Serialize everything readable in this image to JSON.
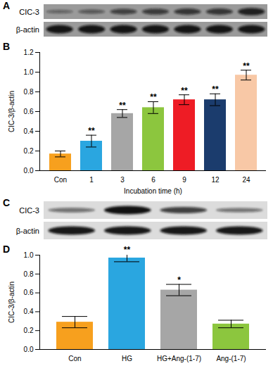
{
  "chart_data": [
    {
      "type": "bar",
      "panel_label": "B",
      "blot": {
        "panel_label": "A",
        "rows": [
          "CIC-3",
          "β-actin"
        ]
      },
      "categories": [
        "Con",
        "1",
        "3",
        "6",
        "9",
        "12",
        "24"
      ],
      "values": [
        0.17,
        0.3,
        0.58,
        0.64,
        0.72,
        0.72,
        0.97
      ],
      "errors": [
        0.03,
        0.06,
        0.04,
        0.06,
        0.05,
        0.06,
        0.05
      ],
      "annotations": [
        null,
        "**",
        "**",
        "**",
        "**",
        "**",
        "**"
      ],
      "colors": [
        "#f7a01e",
        "#2aa6e0",
        "#a6a6a6",
        "#8cc63e",
        "#ee1c25",
        "#1b3c6d",
        "#f8c8a6"
      ],
      "x_label": "Incubation time (h)",
      "y_label": "CIC-3/β-actin",
      "ylim": [
        0,
        1.2
      ],
      "yticks": [
        {
          "value": 0,
          "label": "0.0"
        },
        0.2,
        0.4,
        0.6,
        0.8,
        {
          "value": 1,
          "label": "1.0"
        },
        1.2
      ]
    },
    {
      "type": "bar",
      "panel_label": "D",
      "blot": {
        "panel_label": "C",
        "rows": [
          "CIC-3",
          "β-actin"
        ]
      },
      "categories": [
        "Con",
        "HG",
        "HG+Ang-(1-7)",
        "Ang-(1-7)"
      ],
      "values": [
        0.29,
        0.97,
        0.63,
        0.27
      ],
      "errors": [
        0.06,
        0.04,
        0.06,
        0.04
      ],
      "annotations": [
        null,
        "**",
        "*",
        null
      ],
      "colors": [
        "#f7a01e",
        "#2aa6e0",
        "#a6a6a6",
        "#8cc63e"
      ],
      "y_label": "CIC-3/β-actin",
      "ylim": [
        0,
        1.0
      ],
      "yticks": [
        {
          "value": 0,
          "label": "0.0"
        },
        0.2,
        0.4,
        0.6,
        0.8,
        {
          "value": 1,
          "label": "1.0"
        }
      ]
    }
  ]
}
